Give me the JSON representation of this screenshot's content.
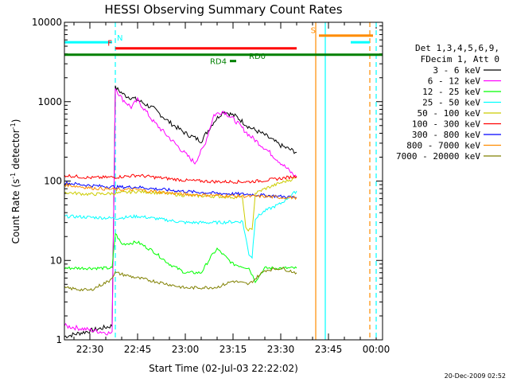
{
  "chart_data": {
    "type": "line",
    "title": "HESSI Observing Summary Count Rates",
    "xlabel": "Start Time (02-Jul-03 22:22:02)",
    "ylabel_main": "Count Rate (s",
    "ylabel_sup": "-1",
    "ylabel_mid": " detector",
    "ylabel_end": ")",
    "date_label": "20-Dec-2009 02:52",
    "y_scale": "log",
    "ylim": [
      1,
      10000
    ],
    "xlim": [
      "22:22",
      "00:02"
    ],
    "x_ticks": [
      "22:30",
      "22:45",
      "23:00",
      "23:15",
      "23:30",
      "23:45",
      "00:00"
    ],
    "y_ticks": [
      "1",
      "10",
      "100",
      "1000",
      "10000"
    ],
    "legend": {
      "header_1": "Det 1,3,4,5,6,9,",
      "header_2": "FDecim 1, Att 0",
      "placement": "right"
    },
    "series": [
      {
        "name": "3 - 6 keV",
        "color": "#000000",
        "x": [
          "22:22",
          "22:37",
          "22:38",
          "22:41",
          "22:45",
          "22:50",
          "22:55",
          "23:00",
          "23:05",
          "23:09",
          "23:12",
          "23:16",
          "23:20",
          "23:25",
          "23:30",
          "23:35"
        ],
        "y": [
          1.1,
          1.5,
          1500,
          1200,
          1050,
          820,
          550,
          400,
          320,
          560,
          760,
          650,
          480,
          380,
          280,
          230
        ]
      },
      {
        "name": "6 - 12 keV",
        "color": "#ff00ff",
        "x": [
          "22:22",
          "22:37",
          "22:38",
          "22:40",
          "22:43",
          "22:45",
          "22:50",
          "22:55",
          "23:00",
          "23:03",
          "23:06",
          "23:09",
          "23:12",
          "23:16",
          "23:20",
          "23:25",
          "23:30",
          "23:35"
        ],
        "y": [
          1.5,
          1.2,
          1500,
          1100,
          850,
          1050,
          560,
          350,
          220,
          170,
          280,
          680,
          760,
          560,
          380,
          260,
          170,
          110
        ]
      },
      {
        "name": "12 - 25 keV",
        "color": "#00ff00",
        "x": [
          "22:22",
          "22:37",
          "22:38",
          "22:40",
          "22:45",
          "22:50",
          "22:55",
          "23:00",
          "23:05",
          "23:08",
          "23:10",
          "23:15",
          "23:20",
          "23:22",
          "23:25",
          "23:30",
          "23:35"
        ],
        "y": [
          8,
          8,
          22,
          16,
          17,
          13,
          9,
          7,
          7,
          11,
          14,
          9,
          8,
          5.5,
          8,
          8,
          8
        ]
      },
      {
        "name": "25 - 50 keV",
        "color": "#00ffff",
        "x": [
          "22:22",
          "22:30",
          "22:38",
          "22:45",
          "22:50",
          "23:00",
          "23:10",
          "23:18",
          "23:20",
          "23:21",
          "23:22",
          "23:25",
          "23:30",
          "23:35"
        ],
        "y": [
          36,
          35,
          34,
          36,
          34,
          30,
          30,
          31,
          12,
          11,
          34,
          42,
          52,
          75
        ]
      },
      {
        "name": "50 - 100 keV",
        "color": "#cccc00",
        "x": [
          "22:22",
          "22:30",
          "22:38",
          "22:45",
          "22:50",
          "23:00",
          "23:10",
          "23:18",
          "23:19",
          "23:21",
          "23:22",
          "23:25",
          "23:30",
          "23:35"
        ],
        "y": [
          72,
          68,
          70,
          74,
          72,
          66,
          64,
          62,
          25,
          24,
          70,
          80,
          95,
          110
        ]
      },
      {
        "name": "100 - 300 keV",
        "color": "#ff0000",
        "x": [
          "22:22",
          "22:30",
          "22:38",
          "22:45",
          "22:50",
          "23:00",
          "23:10",
          "23:20",
          "23:25",
          "23:30",
          "23:35"
        ],
        "y": [
          118,
          110,
          112,
          118,
          112,
          102,
          98,
          98,
          102,
          108,
          115
        ]
      },
      {
        "name": "300 - 800 keV",
        "color": "#0000ff",
        "x": [
          "22:22",
          "22:30",
          "22:38",
          "22:45",
          "22:50",
          "23:00",
          "23:10",
          "23:20",
          "23:25",
          "23:30",
          "23:35"
        ],
        "y": [
          95,
          88,
          84,
          84,
          80,
          74,
          70,
          68,
          66,
          64,
          62
        ]
      },
      {
        "name": "800 - 7000 keV",
        "color": "#ff8c00",
        "x": [
          "22:22",
          "22:30",
          "22:38",
          "22:45",
          "22:50",
          "23:00",
          "23:10",
          "23:20",
          "23:25",
          "23:30",
          "23:35"
        ],
        "y": [
          90,
          82,
          78,
          78,
          74,
          68,
          66,
          64,
          64,
          62,
          62
        ]
      },
      {
        "name": "7000 - 20000 keV",
        "color": "#808000",
        "x": [
          "22:22",
          "22:30",
          "22:36",
          "22:38",
          "22:45",
          "22:50",
          "23:00",
          "23:10",
          "23:15",
          "23:20",
          "23:25",
          "23:30",
          "23:35"
        ],
        "y": [
          4.5,
          4.2,
          5.5,
          7,
          6,
          5.5,
          4.5,
          4.6,
          5.5,
          5,
          7.5,
          8,
          7
        ]
      }
    ],
    "flags": [
      {
        "label": "N",
        "color": "#00ffff",
        "text_color": "#00ffff",
        "x_start": "22:22",
        "x_end": "22:37",
        "y": 5600
      },
      {
        "label": "",
        "color": "#00ffff",
        "text_color": "#00ffff",
        "x_start": "23:52",
        "x_end": "23:58",
        "y": 5600
      },
      {
        "label": "F",
        "color": "#ff0000",
        "text_color": "#ff0000",
        "x_start": "22:38",
        "x_end": "23:35",
        "y": 4700
      },
      {
        "label": "S",
        "color": "#ff8c00",
        "text_color": "#ff8c00",
        "x_start": "23:42",
        "x_end": "23:59",
        "y": 6800
      },
      {
        "label": "RD0",
        "color": "#008000",
        "text_color": "#008000",
        "x_start": "22:22",
        "x_end": "00:02",
        "y": 3900
      },
      {
        "label": "RD4",
        "color": "#008000",
        "text_color": "#008000",
        "x_start": "23:14",
        "x_end": "23:16",
        "y": 3250
      }
    ],
    "vlines": [
      {
        "x": "22:38",
        "color": "#00ffff",
        "style": "dashed"
      },
      {
        "x": "23:41",
        "color": "#ff8c00",
        "style": "solid"
      },
      {
        "x": "23:44",
        "color": "#00ffff",
        "style": "solid"
      },
      {
        "x": "23:58",
        "color": "#ff8c00",
        "style": "dashed"
      },
      {
        "x": "00:00",
        "color": "#00ffff",
        "style": "dashed"
      }
    ]
  }
}
